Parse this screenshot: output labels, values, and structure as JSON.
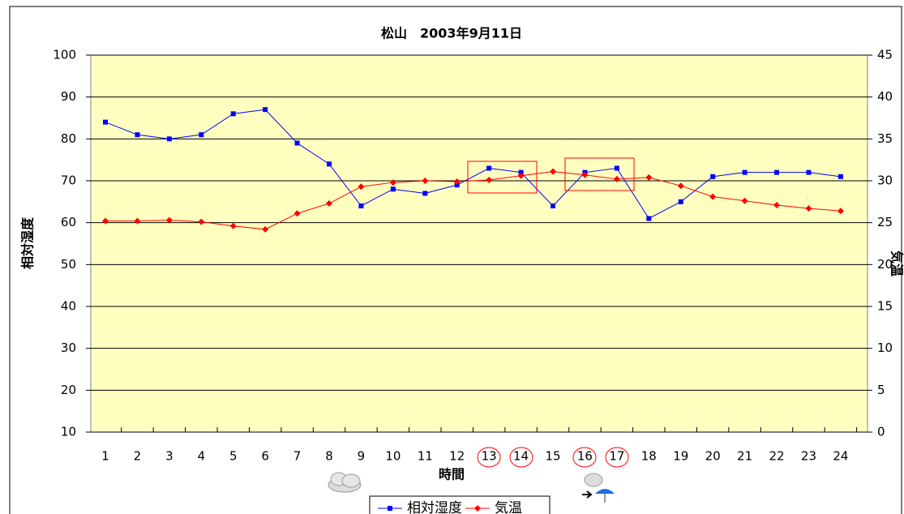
{
  "chart_data": {
    "type": "line",
    "title": "松山　2003年9月11日",
    "x_label": "時間",
    "y_label": "相対湿度",
    "y2_label": "気温",
    "categories": [
      "1",
      "2",
      "3",
      "4",
      "5",
      "6",
      "7",
      "8",
      "9",
      "10",
      "11",
      "12",
      "13",
      "14",
      "15",
      "16",
      "17",
      "18",
      "19",
      "20",
      "21",
      "22",
      "23",
      "24"
    ],
    "series": [
      {
        "name": "相対湿度",
        "color": "#0000ff",
        "marker": "square",
        "values": [
          84,
          81,
          80,
          81,
          86,
          87,
          79,
          74,
          64,
          68,
          67,
          69,
          73,
          72,
          64,
          72,
          73,
          61,
          65,
          71,
          72,
          72,
          72,
          71
        ]
      },
      {
        "name": "気温",
        "color": "#ff0000",
        "marker": "diamond",
        "axis": "y2",
        "values": [
          25.2,
          25.2,
          25.3,
          25.1,
          24.6,
          24.2,
          26.1,
          27.3,
          29.3,
          29.8,
          30.0,
          29.9,
          30.1,
          30.6,
          31.1,
          30.7,
          30.2,
          30.4,
          29.4,
          28.1,
          27.6,
          27.1,
          26.7,
          26.4
        ]
      }
    ],
    "ylim": [
      10,
      100
    ],
    "yticks": [
      10,
      20,
      30,
      40,
      50,
      60,
      70,
      80,
      90,
      100
    ],
    "y2lim": [
      0,
      45
    ],
    "y2ticks": [
      0,
      5,
      10,
      15,
      20,
      25,
      30,
      35,
      40,
      45
    ],
    "grid": true,
    "legend": "bottom"
  }
}
